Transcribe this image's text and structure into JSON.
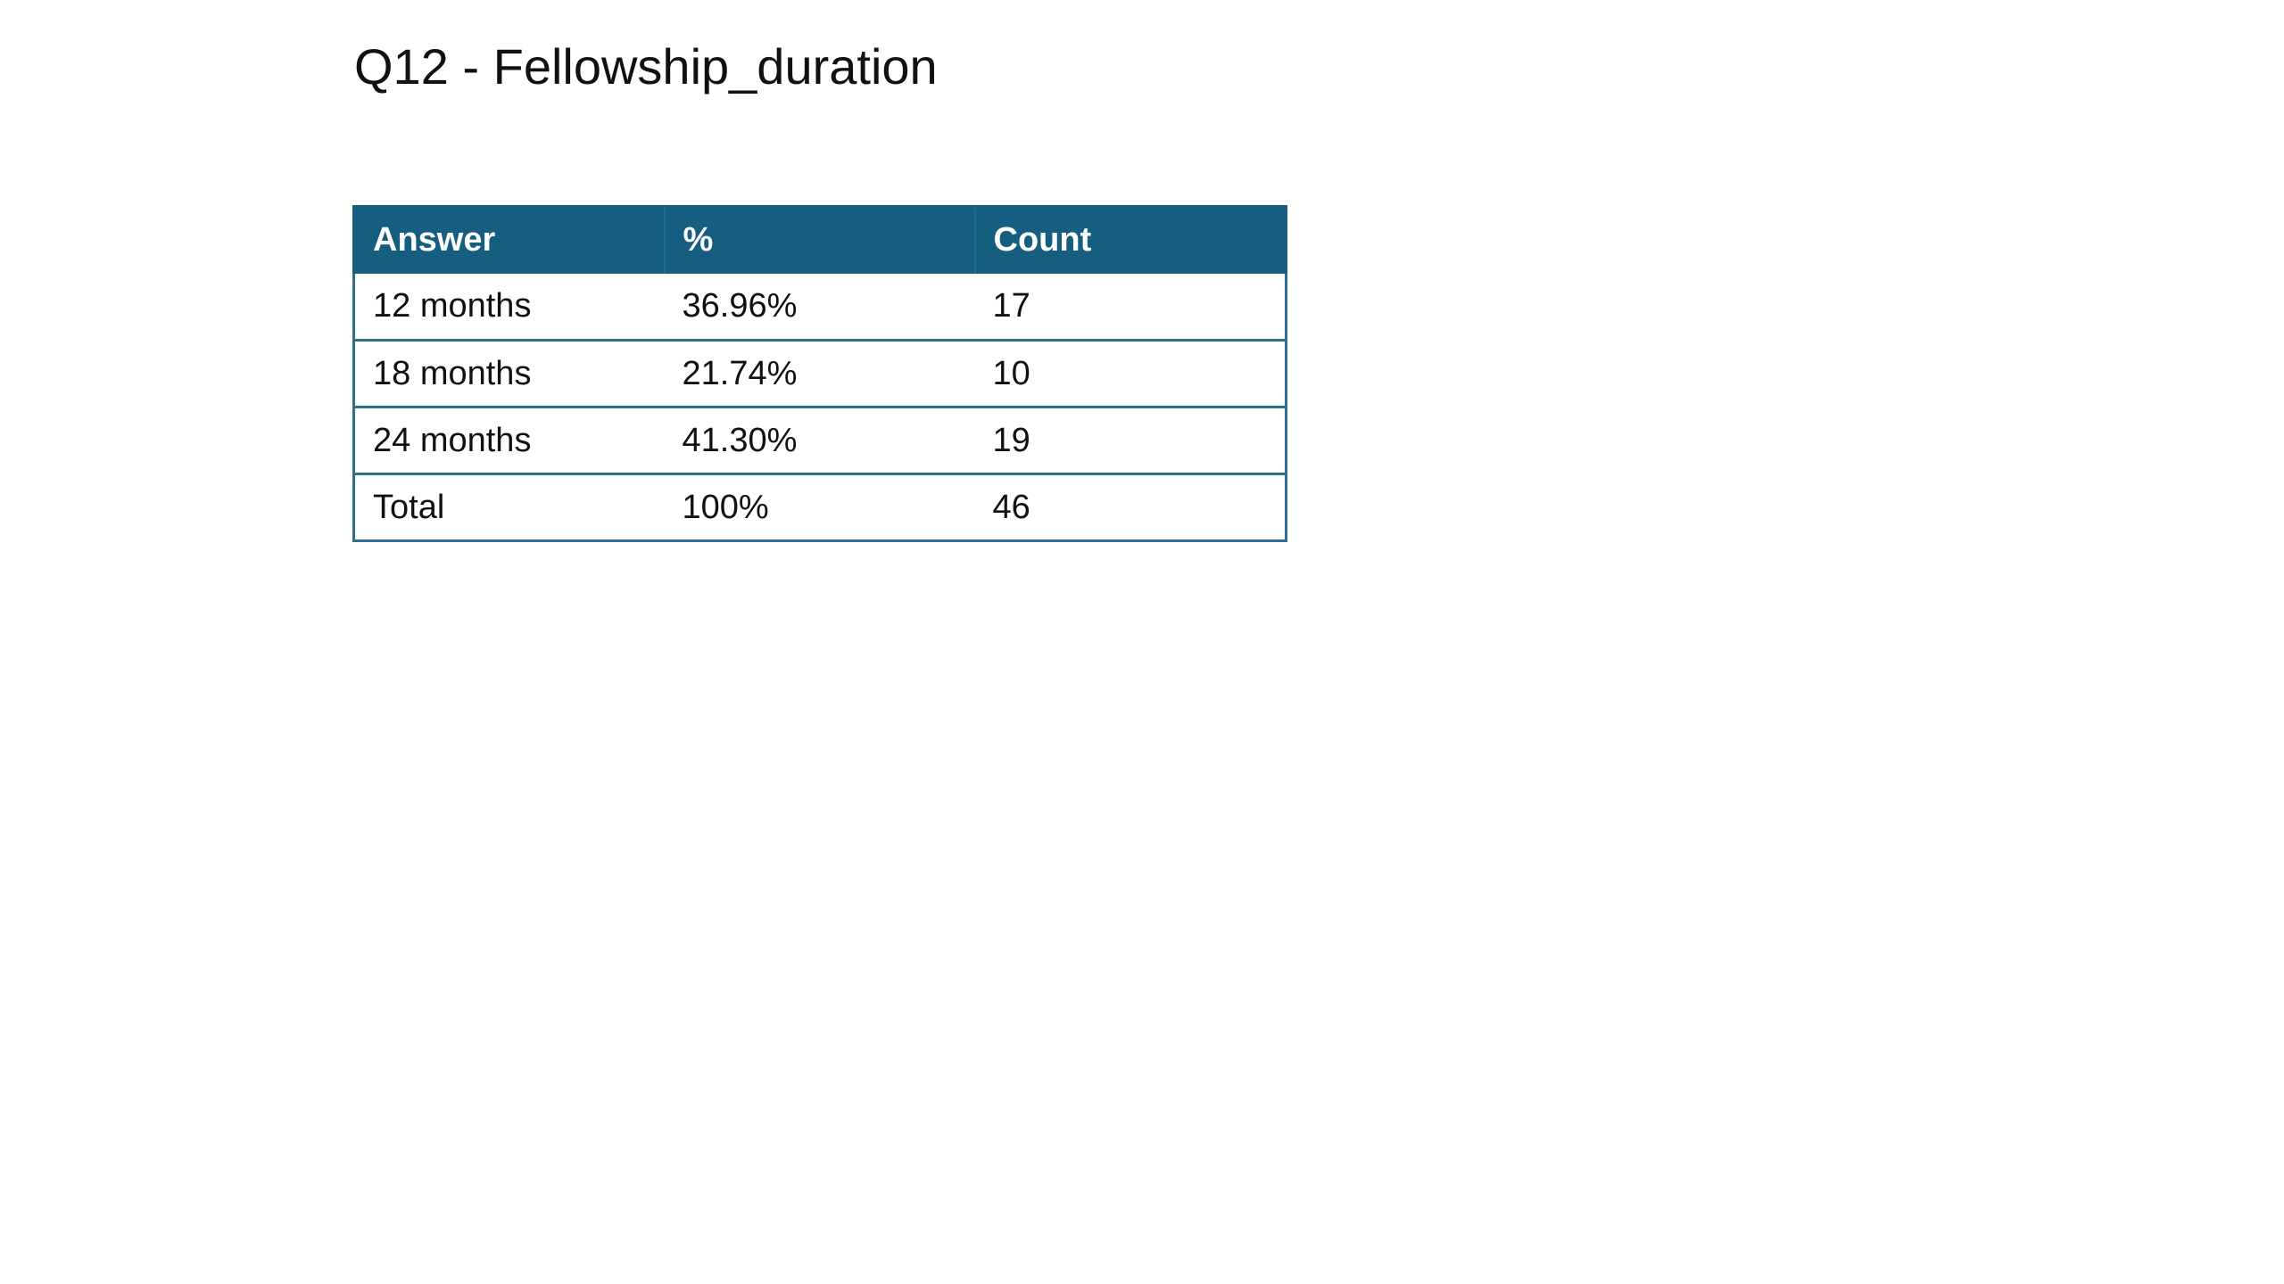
{
  "title": "Q12  - Fellowship_duration",
  "table": {
    "headers": [
      "Answer",
      "%",
      "Count"
    ],
    "rows": [
      [
        "12 months",
        "36.96%",
        "17"
      ],
      [
        "18 months",
        "21.74%",
        "10"
      ],
      [
        "24 months",
        "41.30%",
        "19"
      ],
      [
        "Total",
        "100%",
        "46"
      ]
    ]
  },
  "colors": {
    "header_background": "#155e80",
    "header_text": "#ffffff",
    "row_border": "#2d6f8d"
  }
}
